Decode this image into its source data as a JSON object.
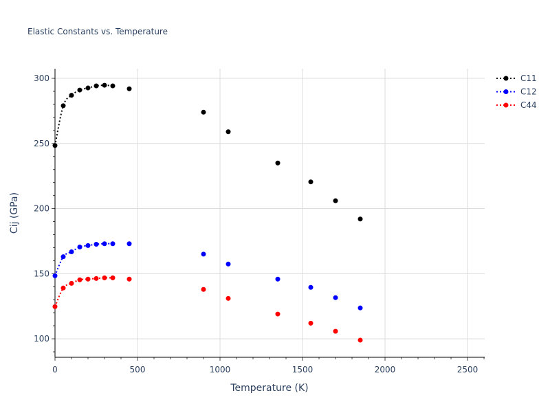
{
  "chart_data": {
    "type": "scatter",
    "title": "Elastic Constants vs. Temperature",
    "xlabel": "Temperature (K)",
    "ylabel": "Cij (GPa)",
    "xlim": [
      0,
      2604
    ],
    "ylim": [
      85.8,
      307.4
    ],
    "xticks": [
      0,
      500,
      1000,
      1500,
      2000,
      2500
    ],
    "yticks": [
      100,
      150,
      200,
      250,
      300
    ],
    "grid": true,
    "legend_position": "top-right",
    "x": [
      0,
      50,
      100,
      150,
      200,
      250,
      300,
      350,
      450,
      900,
      1050,
      1350,
      1550,
      1700,
      1850
    ],
    "fit_line_points": 8,
    "series": [
      {
        "name": "C11",
        "color": "#000000",
        "values": [
          248.4,
          279,
          287,
          291,
          292.6,
          294.2,
          294.7,
          294.2,
          292,
          274,
          259,
          235,
          220.5,
          206,
          192
        ]
      },
      {
        "name": "C12",
        "color": "#0000ff",
        "values": [
          148.4,
          163,
          166.8,
          170.5,
          171.6,
          172.6,
          173,
          173,
          173,
          165,
          157.4,
          145.8,
          139.5,
          131.6,
          123.7
        ]
      },
      {
        "name": "C44",
        "color": "#ff0000",
        "values": [
          124.7,
          139,
          142.6,
          145.3,
          145.8,
          146.3,
          146.8,
          146.8,
          145.8,
          137.9,
          131,
          119,
          112,
          105.8,
          99
        ]
      }
    ]
  }
}
